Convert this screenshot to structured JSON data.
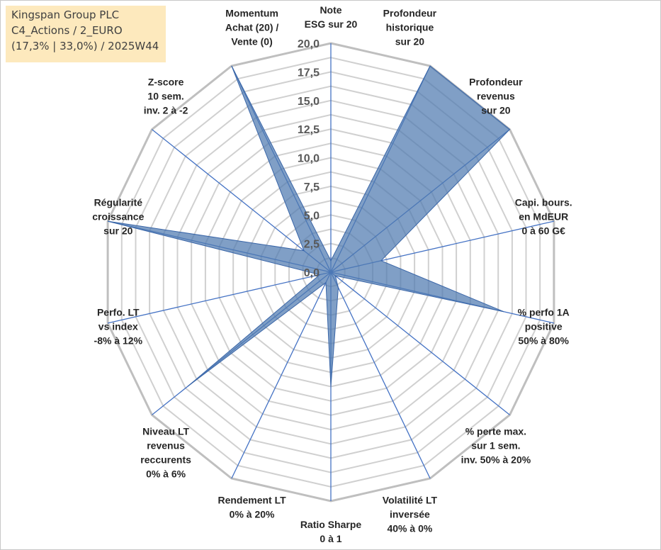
{
  "title_box": {
    "line1": "Kingspan Group PLC",
    "line2": "C4_Actions / 2_EURO",
    "line3": "(17,3% | 33,0%) / 2025W44"
  },
  "chart_data": {
    "type": "radar",
    "rmin": 0,
    "rmax": 20,
    "ticks": [
      "0,0",
      "2,5",
      "5,0",
      "7,5",
      "10,0",
      "12,5",
      "15,0",
      "17,5",
      "20,0"
    ],
    "tick_values": [
      0,
      2.5,
      5,
      7.5,
      10,
      12.5,
      15,
      17.5,
      20
    ],
    "gridlines": 16,
    "series": [
      {
        "name": "Kingspan Group PLC",
        "color": "#4f7ab0",
        "values": [
          1.0,
          20.0,
          20.0,
          4.5,
          15.5,
          0.5,
          1.5,
          10.0,
          1.0,
          16.0,
          1.0,
          20.0,
          3.0,
          20.0,
          1.0
        ]
      }
    ],
    "axes": [
      [
        "Note",
        "ESG sur 20"
      ],
      [
        "Profondeur",
        "historique",
        "sur 20"
      ],
      [
        "Profondeur",
        "revenus",
        "sur 20"
      ],
      [
        "Capi. bours.",
        "en MdEUR",
        "0 à 60 G€"
      ],
      [
        "% perfo 1A",
        "positive",
        "50% à 80%"
      ],
      [
        "% perte max.",
        "sur 1 sem.",
        "inv. 50% à 20%"
      ],
      [
        "Volatilité LT",
        "inversée",
        "40% à 0%"
      ],
      [
        "Ratio Sharpe",
        "0 à 1"
      ],
      [
        "Rendement LT",
        "0% à 20%"
      ],
      [
        "Niveau LT",
        "revenus",
        "reccurents",
        "0% à 6%"
      ],
      [
        "Perfo. LT",
        "vs index",
        "-8% à 12%"
      ],
      [
        "Régularité",
        "croissance",
        "sur 20"
      ],
      [
        "Z-score",
        "10 sem.",
        "inv. 2 à -2"
      ],
      [
        "Momentum",
        "Achat (20) /",
        "Vente (0)"
      ]
    ]
  }
}
